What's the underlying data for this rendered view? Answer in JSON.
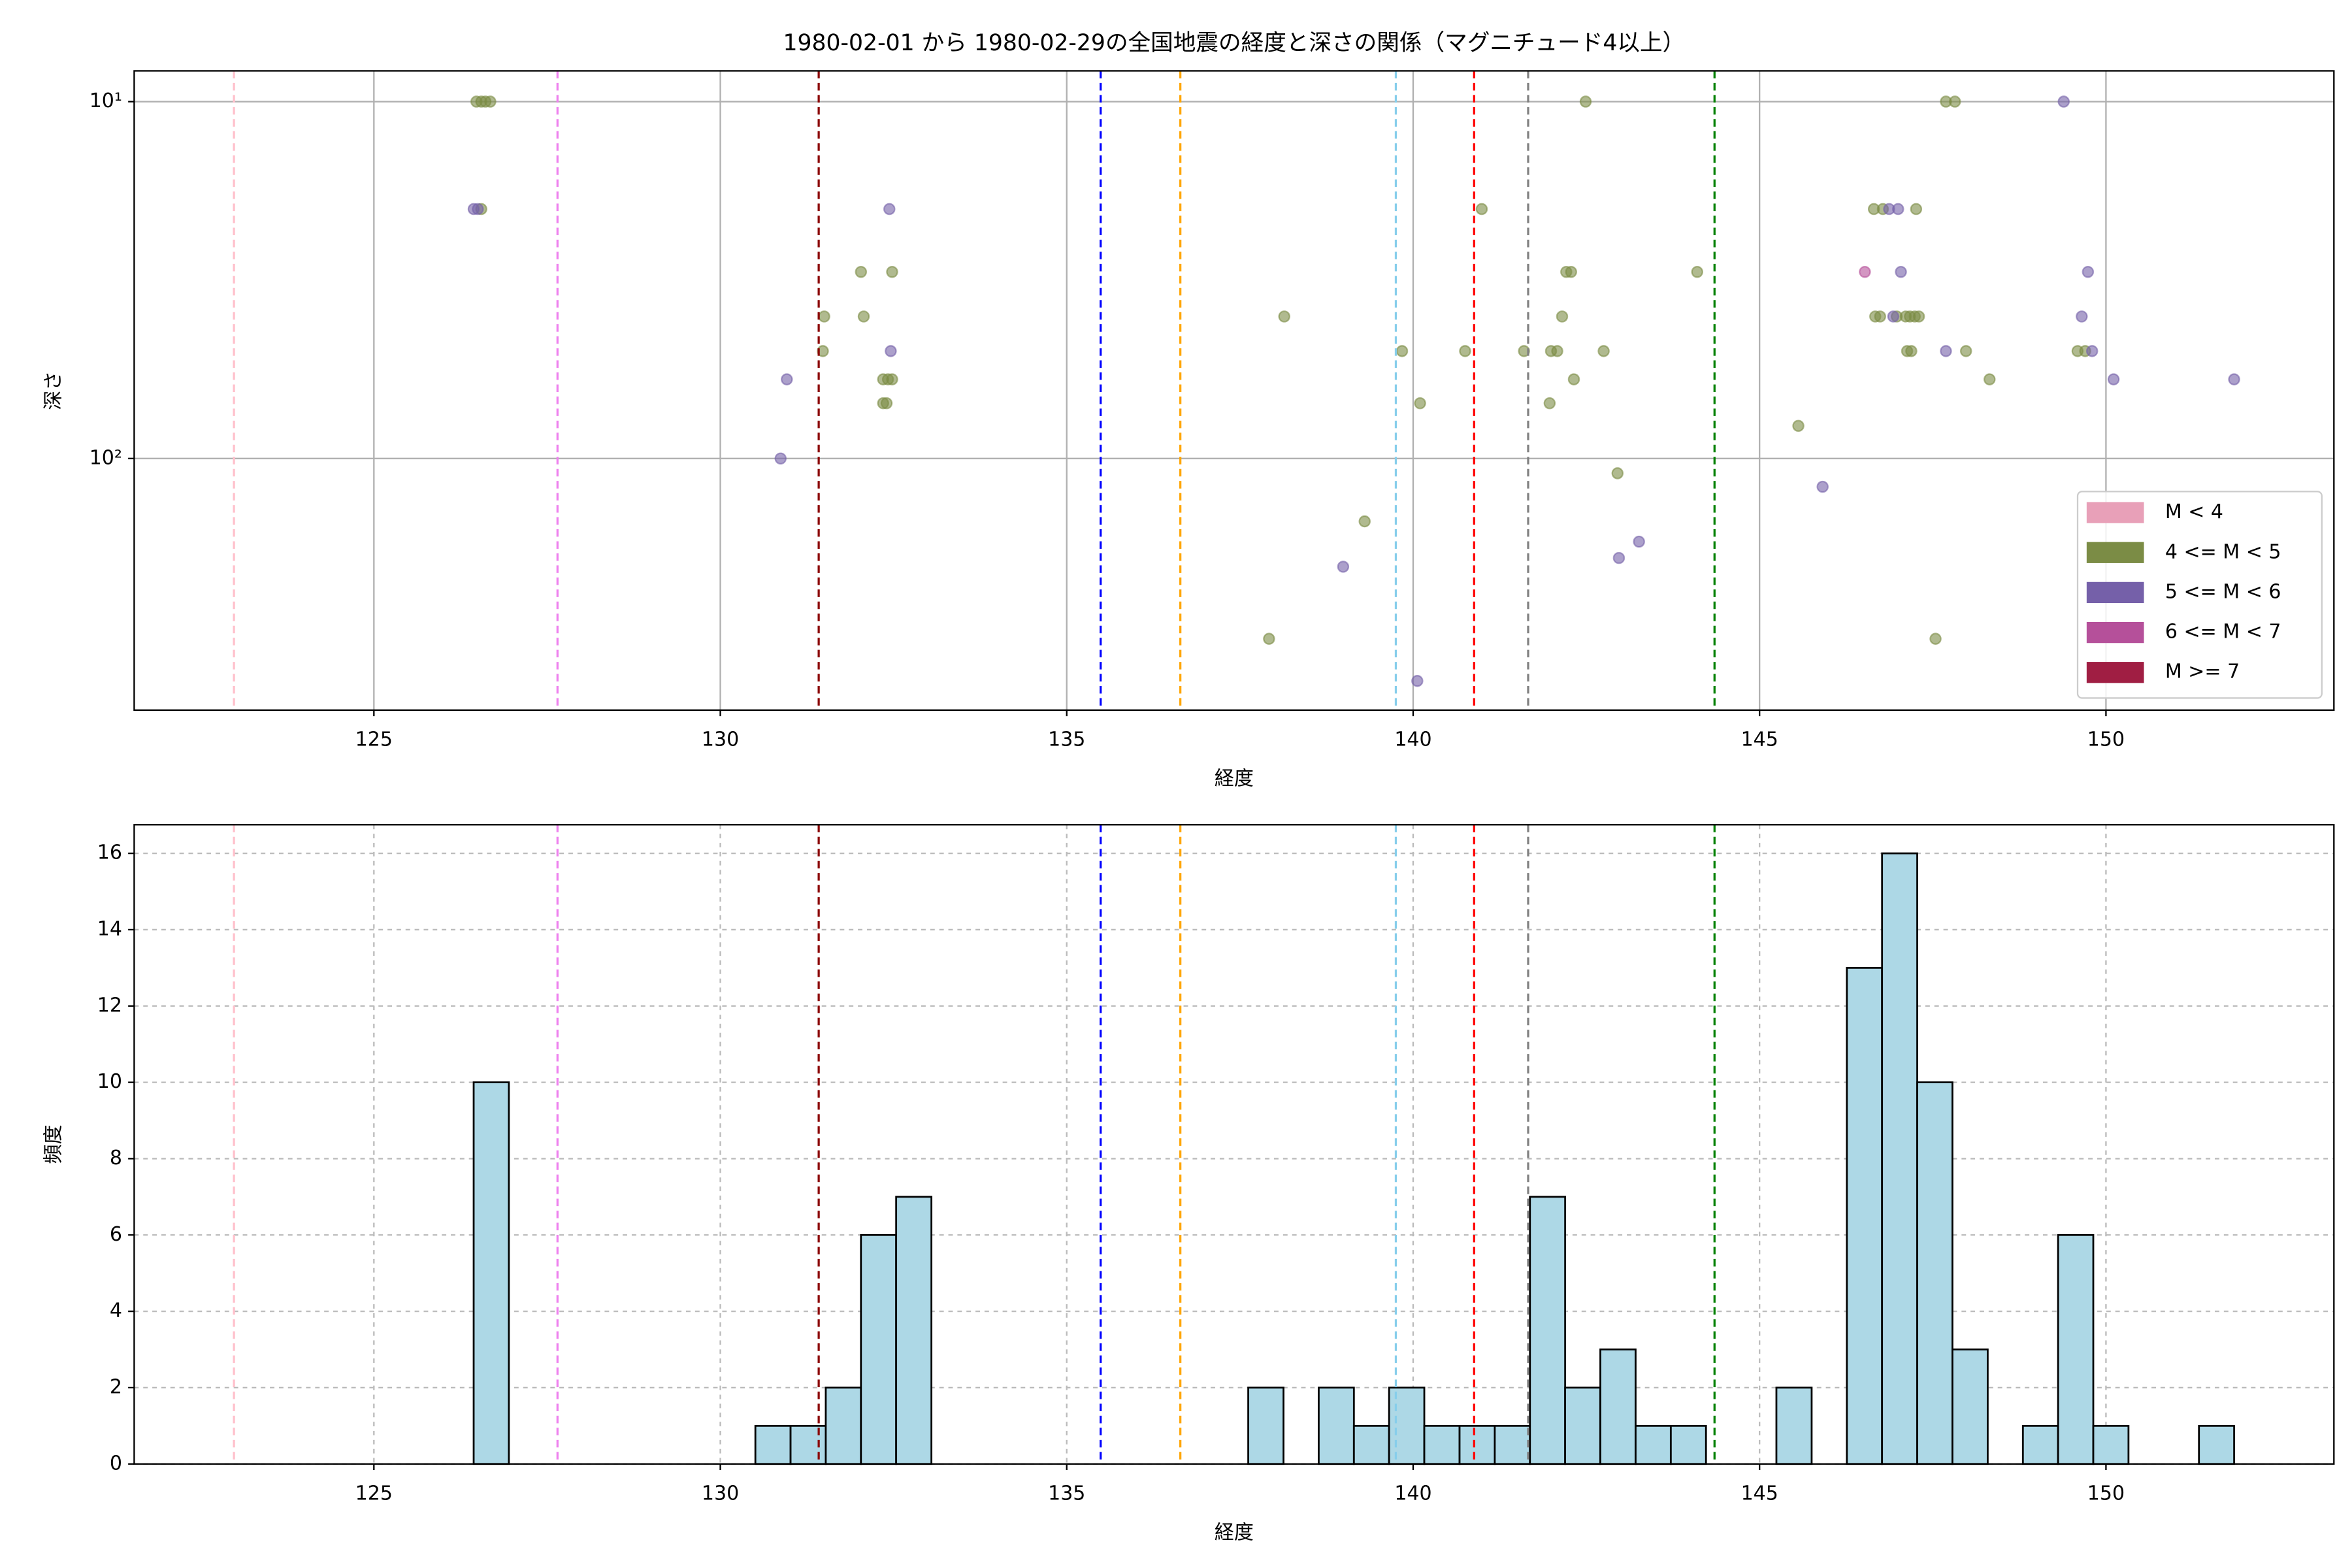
{
  "chart_data": [
    {
      "type": "scatter",
      "title": "1980-02-01 から 1980-02-29の全国地震の経度と深さの関係（マグニチュード4以上）",
      "xlabel": "経度",
      "ylabel": "深さ",
      "xlim": [
        121.54,
        153.29
      ],
      "xticks": [
        125,
        130,
        135,
        140,
        145,
        150
      ],
      "ylim": [
        8.2,
        507
      ],
      "log_y": true,
      "invert_y": true,
      "yticks": [
        {
          "value": 10,
          "label": "10¹"
        },
        {
          "value": 100,
          "label": "10²"
        }
      ],
      "grid": true,
      "grid_style": "solid",
      "legend": "lower right",
      "alpha": 0.6,
      "vlines": [
        {
          "x": 122.98,
          "color": "pink"
        },
        {
          "x": 127.65,
          "color": "violet"
        },
        {
          "x": 131.42,
          "color": "darkred"
        },
        {
          "x": 135.49,
          "color": "blue"
        },
        {
          "x": 136.64,
          "color": "orange"
        },
        {
          "x": 139.75,
          "color": "skyblue"
        },
        {
          "x": 140.88,
          "color": "red"
        },
        {
          "x": 141.66,
          "color": "gray"
        },
        {
          "x": 144.35,
          "color": "green"
        }
      ],
      "series": [
        {
          "name": "M < 4",
          "color": "#e8a0b8",
          "x": [],
          "values": []
        },
        {
          "name": "4 <= M < 5",
          "color": "#7b8c45",
          "x": [
            126.48,
            126.55,
            126.61,
            126.68,
            126.55,
            131.5,
            131.48,
            132.03,
            132.07,
            132.48,
            132.35,
            132.42,
            132.48,
            132.35,
            132.4,
            138.14,
            137.92,
            139.3,
            139.84,
            140.1,
            140.75,
            140.99,
            141.6,
            141.97,
            141.99,
            142.08,
            142.15,
            142.21,
            142.28,
            142.32,
            142.49,
            142.75,
            142.95,
            144.1,
            145.56,
            146.65,
            146.78,
            147.26,
            146.67,
            146.74,
            146.98,
            147.11,
            147.17,
            147.24,
            147.3,
            147.13,
            147.19,
            147.69,
            147.82,
            147.54,
            147.98,
            148.32,
            149.59,
            149.7
          ],
          "values": [
            10,
            10,
            10,
            10,
            20,
            40,
            50,
            30,
            40,
            30,
            60,
            60,
            60,
            70,
            70,
            40,
            320,
            150,
            50,
            70,
            50,
            20,
            50,
            70,
            50,
            50,
            40,
            30,
            30,
            60,
            10,
            50,
            110,
            30,
            81,
            20,
            20,
            20,
            40,
            40,
            40,
            40,
            40,
            40,
            40,
            50,
            50,
            10,
            10,
            320,
            50,
            60,
            50,
            50
          ]
        },
        {
          "name": "5 <= M < 6",
          "color": "#7560a9",
          "x": [
            126.44,
            126.5,
            132.44,
            130.96,
            130.87,
            132.46,
            138.99,
            140.06,
            142.97,
            143.26,
            145.91,
            146.87,
            147.0,
            146.93,
            147.04,
            147.69,
            149.39,
            149.74,
            149.65,
            149.8,
            150.11,
            151.85
          ],
          "values": [
            20,
            20,
            20,
            60,
            100,
            50,
            201,
            420,
            190,
            171,
            120,
            20,
            20,
            40,
            30,
            50,
            10,
            30,
            40,
            50,
            60,
            60
          ]
        },
        {
          "name": "6 <= M < 7",
          "color": "#b5509a",
          "x": [
            146.52
          ],
          "values": [
            30
          ]
        },
        {
          "name": "M >= 7",
          "color": "#a01e43",
          "x": [],
          "values": []
        }
      ]
    },
    {
      "type": "histogram",
      "xlabel": "経度",
      "ylabel": "頻度",
      "xlim": [
        121.54,
        153.29
      ],
      "xticks": [
        125,
        130,
        135,
        140,
        145,
        150
      ],
      "ylim": [
        0,
        16.75
      ],
      "yticks": [
        0,
        2,
        4,
        6,
        8,
        10,
        12,
        14,
        16
      ],
      "grid": true,
      "grid_style": "dashed",
      "color": "#add8e6",
      "edgecolor": "#000000",
      "vlines": [
        {
          "x": 122.98,
          "color": "pink"
        },
        {
          "x": 127.65,
          "color": "violet"
        },
        {
          "x": 131.42,
          "color": "darkred"
        },
        {
          "x": 135.49,
          "color": "blue"
        },
        {
          "x": 136.64,
          "color": "orange"
        },
        {
          "x": 139.75,
          "color": "skyblue"
        },
        {
          "x": 140.88,
          "color": "red"
        },
        {
          "x": 141.66,
          "color": "gray"
        },
        {
          "x": 144.35,
          "color": "green"
        }
      ],
      "bins": [
        126.44,
        126.948,
        127.456,
        127.965,
        128.473,
        128.981,
        129.489,
        129.997,
        130.506,
        131.014,
        131.522,
        132.03,
        132.538,
        133.047,
        133.555,
        134.063,
        134.571,
        135.079,
        135.588,
        136.096,
        136.604,
        137.112,
        137.62,
        138.129,
        138.637,
        139.145,
        139.653,
        140.161,
        140.67,
        141.178,
        141.686,
        142.194,
        142.702,
        143.211,
        143.719,
        144.227,
        144.735,
        145.243,
        145.752,
        146.26,
        146.768,
        147.276,
        147.784,
        148.293,
        148.801,
        149.309,
        149.817,
        150.325,
        150.834,
        151.342,
        151.85
      ],
      "values": [
        10,
        0,
        0,
        0,
        0,
        0,
        0,
        0,
        1,
        1,
        2,
        6,
        7,
        0,
        0,
        0,
        0,
        0,
        0,
        0,
        0,
        0,
        2,
        0,
        2,
        1,
        2,
        1,
        1,
        1,
        7,
        2,
        3,
        1,
        1,
        0,
        0,
        2,
        0,
        13,
        16,
        10,
        3,
        0,
        1,
        6,
        1,
        0,
        0,
        1
      ]
    }
  ]
}
